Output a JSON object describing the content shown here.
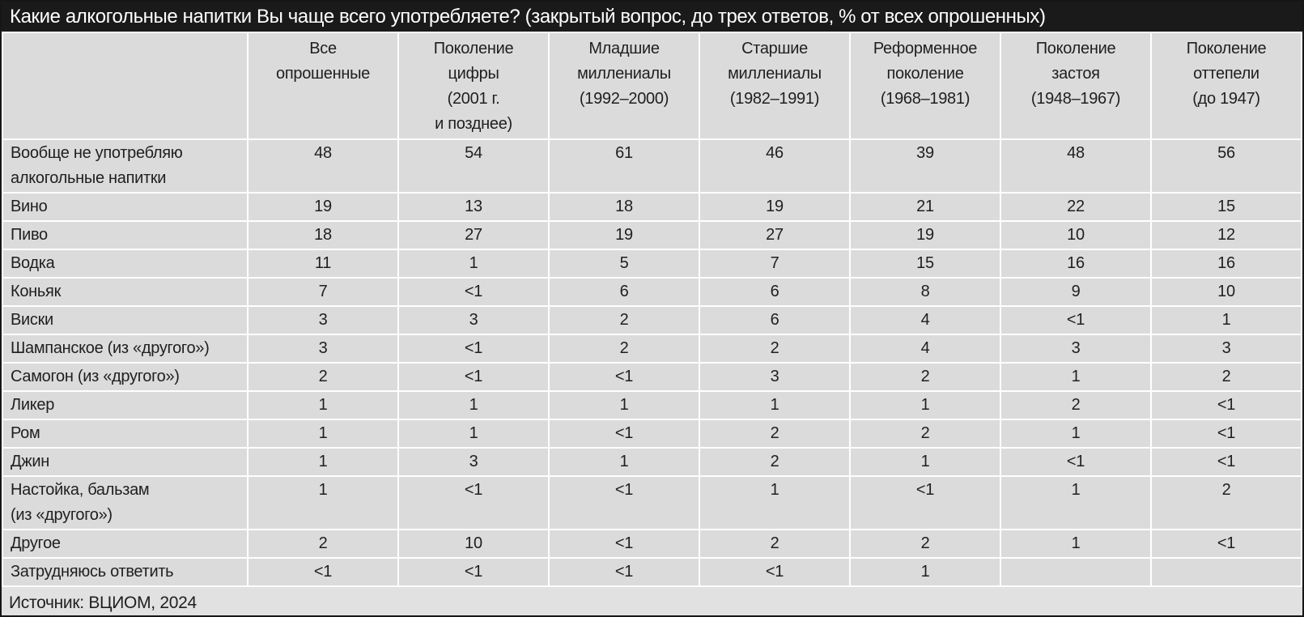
{
  "chart_data": {
    "type": "table",
    "title": "Какие алкогольные напитки Вы чаще всего употребляете? (закрытый вопрос, до трех ответов, % от всех опрошенных)",
    "columns": [
      "",
      "Все опрошенные",
      "Поколение цифры (2001 г. и позднее)",
      "Младшие миллениалы (1992–2000)",
      "Старшие миллениалы (1982–1991)",
      "Реформенное поколение (1968–1981)",
      "Поколение застоя (1948–1967)",
      "Поколение оттепели (до 1947)"
    ],
    "rows": [
      {
        "label": "Вообще не употребляю алкогольные напитки",
        "values": [
          "48",
          "54",
          "61",
          "46",
          "39",
          "48",
          "56"
        ]
      },
      {
        "label": "Вино",
        "values": [
          "19",
          "13",
          "18",
          "19",
          "21",
          "22",
          "15"
        ]
      },
      {
        "label": "Пиво",
        "values": [
          "18",
          "27",
          "19",
          "27",
          "19",
          "10",
          "12"
        ]
      },
      {
        "label": "Водка",
        "values": [
          "11",
          "1",
          "5",
          "7",
          "15",
          "16",
          "16"
        ]
      },
      {
        "label": "Коньяк",
        "values": [
          "7",
          "<1",
          "6",
          "6",
          "8",
          "9",
          "10"
        ]
      },
      {
        "label": "Виски",
        "values": [
          "3",
          "3",
          "2",
          "6",
          "4",
          "<1",
          "1"
        ]
      },
      {
        "label": "Шампанское (из «другого»)",
        "values": [
          "3",
          "<1",
          "2",
          "2",
          "4",
          "3",
          "3"
        ]
      },
      {
        "label": "Самогон (из «другого»)",
        "values": [
          "2",
          "<1",
          "<1",
          "3",
          "2",
          "1",
          "2"
        ]
      },
      {
        "label": "Ликер",
        "values": [
          "1",
          "1",
          "1",
          "1",
          "1",
          "2",
          "<1"
        ]
      },
      {
        "label": "Ром",
        "values": [
          "1",
          "1",
          "<1",
          "2",
          "2",
          "1",
          "<1"
        ]
      },
      {
        "label": "Джин",
        "values": [
          "1",
          "3",
          "1",
          "2",
          "1",
          "<1",
          "<1"
        ]
      },
      {
        "label": "Настойка, бальзам (из «другого»)",
        "values": [
          "1",
          "<1",
          "<1",
          "1",
          "<1",
          "1",
          "2"
        ]
      },
      {
        "label": "Другое",
        "values": [
          "2",
          "10",
          "<1",
          "2",
          "2",
          "1",
          "<1"
        ]
      },
      {
        "label": "Затрудняюсь ответить",
        "values": [
          "<1",
          "<1",
          "<1",
          "<1",
          "1",
          "",
          ""
        ]
      }
    ],
    "source": "Источник: ВЦИОМ, 2024"
  },
  "display": {
    "column_labels": [
      "",
      "Все\nопрошенные",
      "Поколение\nцифры\n(2001 г.\nи позднее)",
      "Младшие\nмиллениалы\n(1992–2000)",
      "Старшие\nмиллениалы\n(1982–1991)",
      "Реформенное\nпоколение\n(1968–1981)",
      "Поколение\nзастоя\n(1948–1967)",
      "Поколение\nоттепели\n(до 1947)"
    ],
    "row_labels": [
      "Вообще не употребляю\nалкогольные напитки",
      "Вино",
      "Пиво",
      "Водка",
      "Коньяк",
      "Виски",
      "Шампанское (из «другого»)",
      "Самогон (из «другого»)",
      "Ликер",
      "Ром",
      "Джин",
      "Настойка, бальзам\n(из «другого»)",
      "Другое",
      "Затрудняюсь ответить"
    ]
  },
  "colors": {
    "title_bar_bg": "#1a1a1a",
    "title_text": "#ffffff",
    "cell_bg": "#dbdbdb",
    "grid": "#ffffff",
    "text": "#1f1f1f",
    "source_bar_bg": "#e1e1e1"
  }
}
